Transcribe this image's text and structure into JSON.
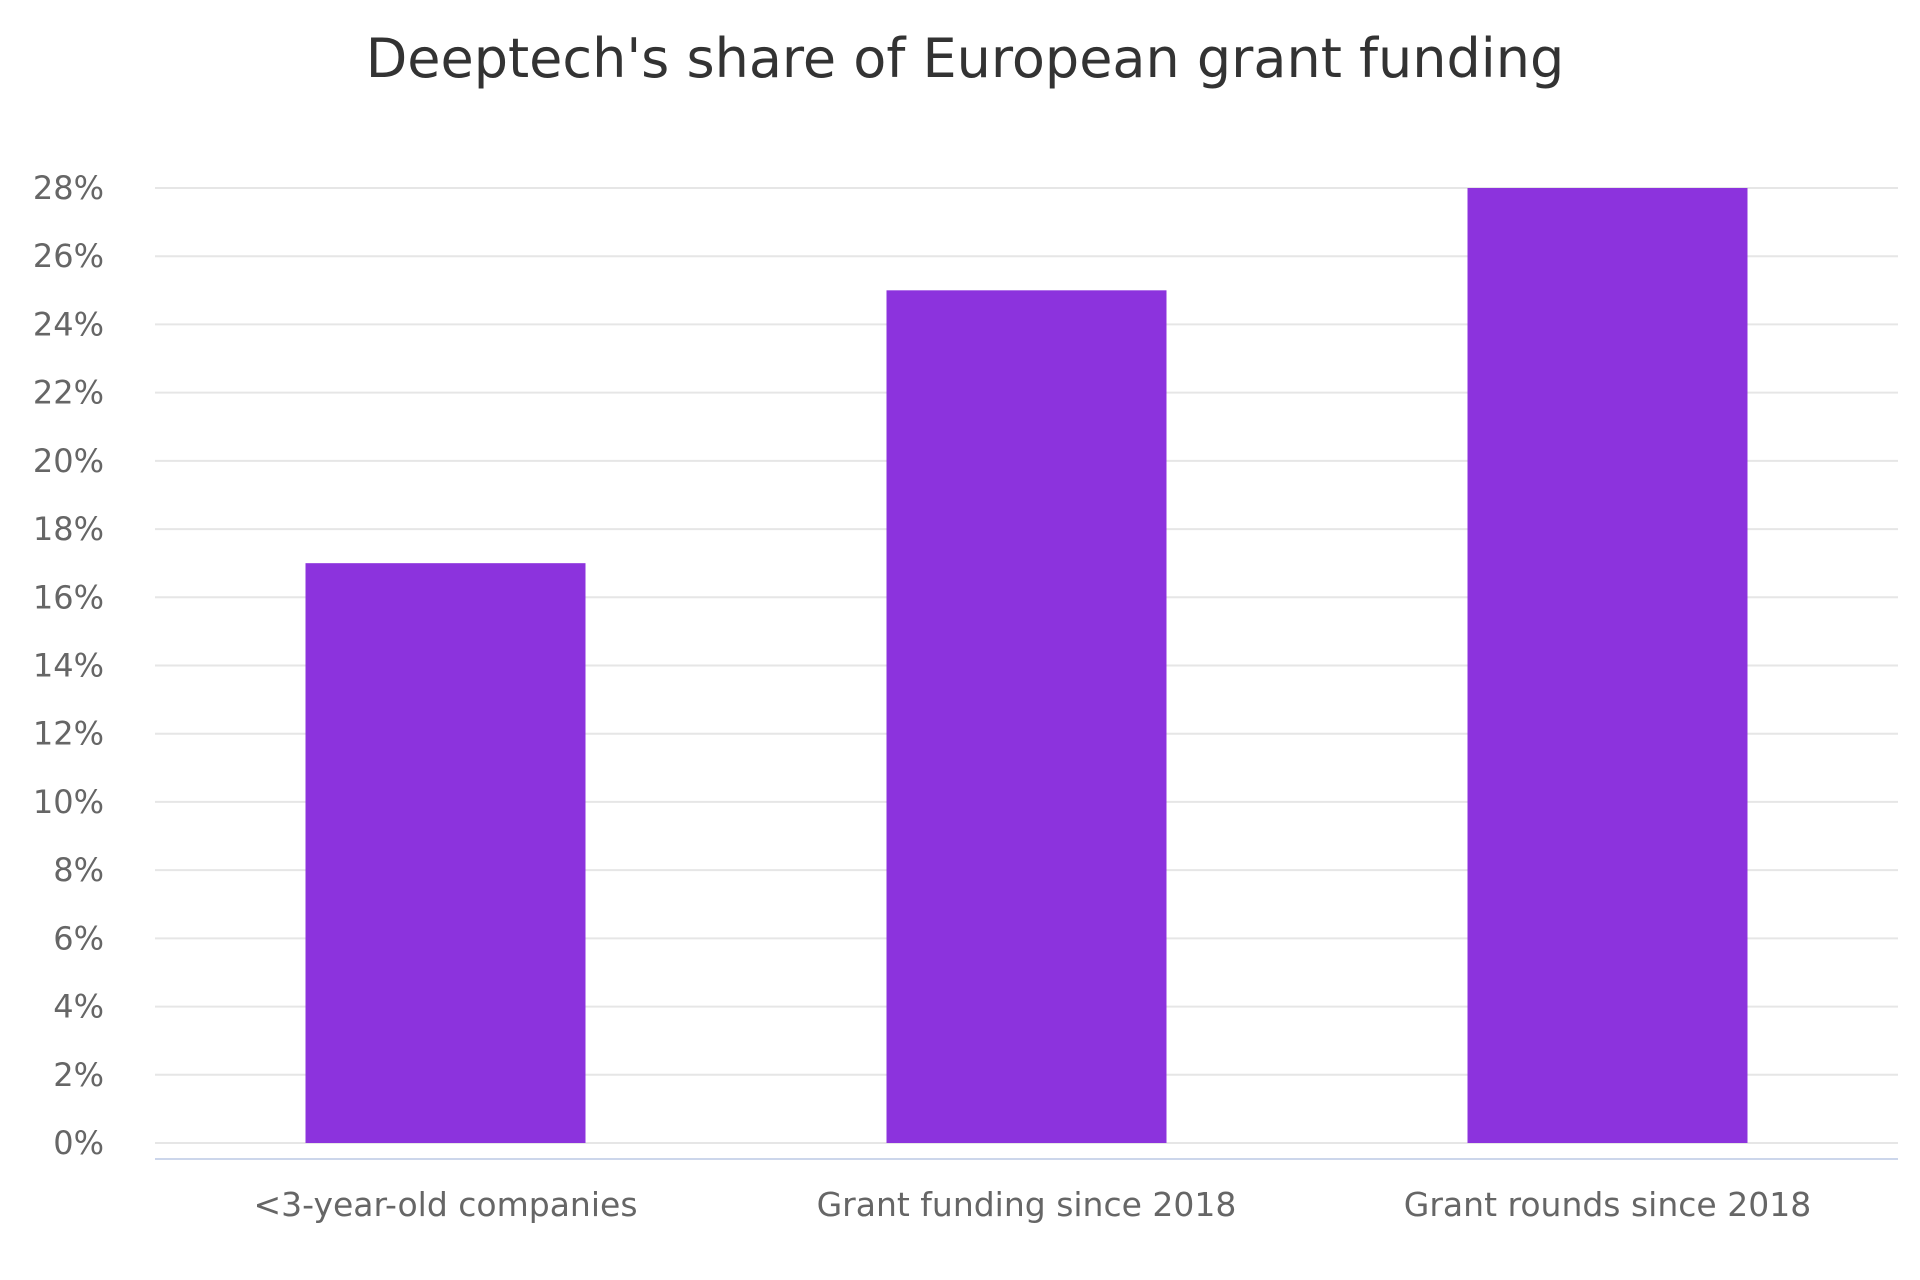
{
  "chart_data": {
    "type": "bar",
    "title": "Deeptech's share of European grant funding",
    "categories": [
      "<3-year-old companies",
      "Grant funding since 2018",
      "Grant rounds since 2018"
    ],
    "values": [
      17,
      25,
      28
    ],
    "unit": "%",
    "ylim": [
      0,
      28
    ],
    "yticks": [
      0,
      2,
      4,
      6,
      8,
      10,
      12,
      14,
      16,
      18,
      20,
      22,
      24,
      26,
      28
    ],
    "ytick_labels": [
      "0%",
      "2%",
      "4%",
      "6%",
      "8%",
      "10%",
      "12%",
      "14%",
      "16%",
      "18%",
      "20%",
      "22%",
      "24%",
      "26%",
      "28%"
    ],
    "xlabel": "",
    "ylabel": "",
    "grid": true,
    "legend": "none",
    "colors": {
      "bar": "#8c33dd",
      "grid": "#e6e6e6",
      "baseline": "#ccd6eb",
      "title": "#333333",
      "label": "#666666"
    }
  }
}
